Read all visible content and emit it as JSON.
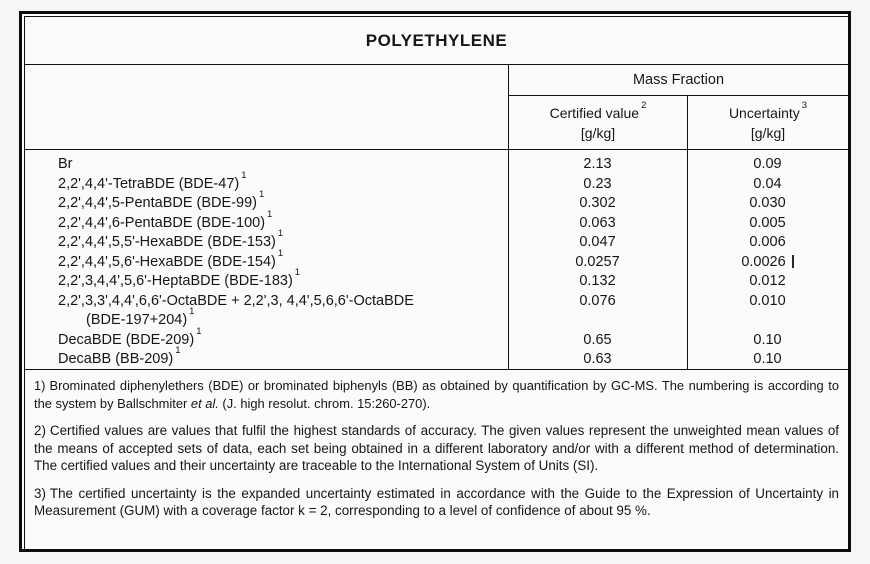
{
  "table": {
    "title": "POLYETHYLENE",
    "group_header": "Mass Fraction",
    "columns": {
      "certified": {
        "label": "Certified value",
        "sup": "2",
        "unit": "[g/kg]"
      },
      "uncertainty": {
        "label": "Uncertainty",
        "sup": "3",
        "unit": "[g/kg]"
      }
    },
    "rows": [
      {
        "label": "Br",
        "sup": "",
        "value": "2.13",
        "uncertainty": "0.09"
      },
      {
        "label": "2,2',4,4'-TetraBDE (BDE-47)",
        "sup": "1",
        "value": "0.23",
        "uncertainty": "0.04"
      },
      {
        "label": "2,2',4,4',5-PentaBDE (BDE-99)",
        "sup": "1",
        "value": "0.302",
        "uncertainty": "0.030"
      },
      {
        "label": "2,2',4,4',6-PentaBDE (BDE-100)",
        "sup": "1",
        "value": "0.063",
        "uncertainty": "0.005"
      },
      {
        "label": "2,2',4,4',5,5'-HexaBDE (BDE-153)",
        "sup": "1",
        "value": "0.047",
        "uncertainty": "0.006"
      },
      {
        "label": "2,2',4,4',5,6'-HexaBDE (BDE-154)",
        "sup": "1",
        "value": "0.0257",
        "uncertainty": "0.0026",
        "cursor_artifact": true
      },
      {
        "label": "2,2',3,4,4',5,6'-HeptaBDE (BDE-183)",
        "sup": "1",
        "value": "0.132",
        "uncertainty": "0.012"
      },
      {
        "label": "2,2',3,3',4,4',6,6'-OctaBDE + 2,2',3, 4,4',5,6,6'-OctaBDE",
        "sup": "",
        "label_line2": "(BDE-197+204)",
        "sup2": "1",
        "value": "0.076",
        "uncertainty": "0.010"
      },
      {
        "label": "DecaBDE (BDE-209)",
        "sup": "1",
        "value": "0.65",
        "uncertainty": "0.10"
      },
      {
        "label": "DecaBB (BB-209)",
        "sup": "1",
        "value": "0.63",
        "uncertainty": "0.10"
      }
    ]
  },
  "footnotes": [
    {
      "marker": "1)",
      "pre": "Brominated diphenylethers (BDE) or brominated biphenyls (BB) as obtained by quantification by GC-MS. The numbering is according to the system by Ballschmiter",
      "italic": " et al.",
      "post": " (J. high resolut. chrom. 15:260-270)."
    },
    {
      "marker": "2)",
      "pre": "Certified values are values that fulfil the highest standards of accuracy. The given values represent the unweighted mean values of the means of accepted sets of data, each set being obtained in a different laboratory and/or with a different method of determination. The certified values and their uncertainty are traceable to the International System of Units (SI).",
      "italic": "",
      "post": ""
    },
    {
      "marker": "3)",
      "pre": "The certified uncertainty is the expanded uncertainty estimated in accordance with the Guide to the Expression of Uncertainty in Measurement (GUM) with a coverage factor k = 2, corresponding to a level of confidence of about 95 %.",
      "italic": "",
      "post": ""
    }
  ]
}
